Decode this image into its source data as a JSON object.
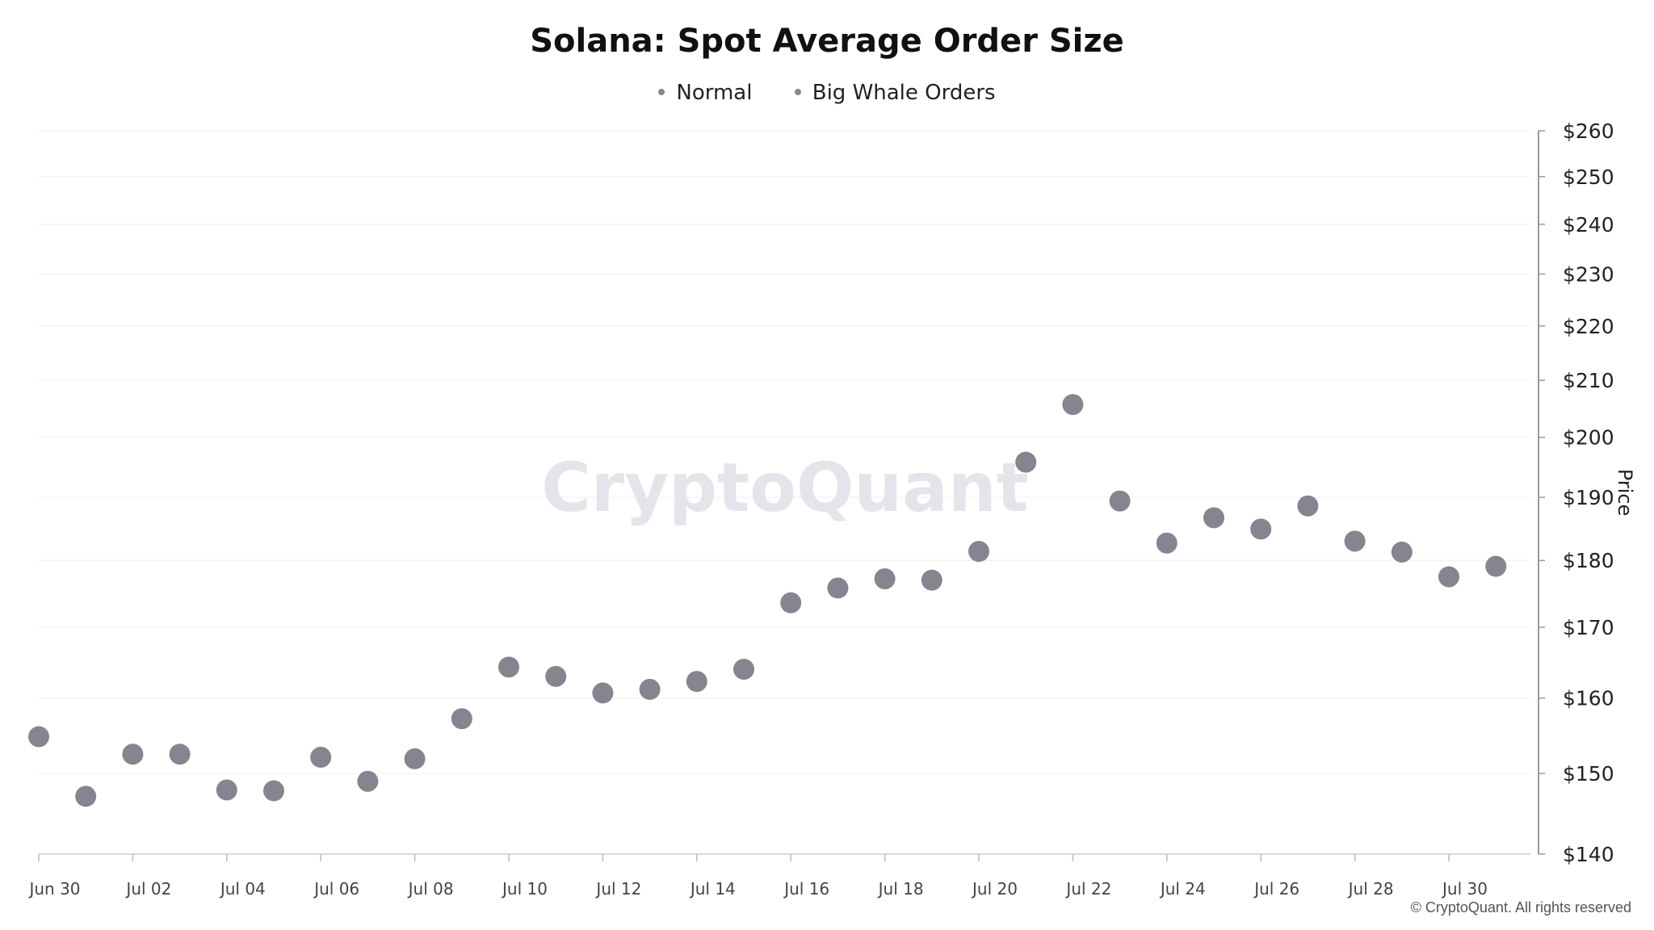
{
  "chart_data": {
    "type": "scatter",
    "title": "Solana: Spot Average Order Size",
    "legend": [
      "Normal",
      "Big Whale Orders"
    ],
    "legend_position": "top-center",
    "ylabel": "Price",
    "y_axis_side": "right",
    "y_scale": "log",
    "ylim": [
      140,
      260
    ],
    "yticks": [
      140,
      150,
      160,
      170,
      180,
      190,
      200,
      210,
      220,
      230,
      240,
      250,
      260
    ],
    "ytick_labels": [
      "$140",
      "$150",
      "$160",
      "$170",
      "$180",
      "$190",
      "$200",
      "$210",
      "$220",
      "$230",
      "$240",
      "$250",
      "$260"
    ],
    "xlim": [
      "2025-06-30",
      "2025-08-01"
    ],
    "xtick_labels": [
      "Jun 30",
      "Jul 02",
      "Jul 04",
      "Jul 06",
      "Jul 08",
      "Jul 10",
      "Jul 12",
      "Jul 14",
      "Jul 16",
      "Jul 18",
      "Jul 20",
      "Jul 22",
      "Jul 24",
      "Jul 26",
      "Jul 28",
      "Jul 30"
    ],
    "grid": true,
    "marker_color": "#86848e",
    "watermark": "CryptoQuant",
    "x": [
      "Jun 30",
      "Jul 01",
      "Jul 02",
      "Jul 03",
      "Jul 04",
      "Jul 05",
      "Jul 06",
      "Jul 07",
      "Jul 08",
      "Jul 09",
      "Jul 10",
      "Jul 11",
      "Jul 12",
      "Jul 13",
      "Jul 14",
      "Jul 15",
      "Jul 16",
      "Jul 17",
      "Jul 18",
      "Jul 19",
      "Jul 20",
      "Jul 21",
      "Jul 22",
      "Jul 23",
      "Jul 24",
      "Jul 25",
      "Jul 26",
      "Jul 27",
      "Jul 28",
      "Jul 29",
      "Jul 30",
      "Jul 31"
    ],
    "series": [
      {
        "name": "Big Whale Orders",
        "values": [
          154.8,
          147.1,
          152.5,
          152.5,
          147.9,
          147.8,
          152.1,
          149.0,
          151.9,
          157.2,
          164.3,
          163.0,
          160.7,
          161.2,
          162.3,
          164.0,
          173.6,
          175.8,
          177.2,
          177.0,
          181.4,
          195.8,
          205.7,
          189.4,
          182.7,
          186.7,
          184.9,
          188.6,
          183.0,
          181.3,
          177.5,
          179.1
        ]
      }
    ]
  },
  "footer": {
    "copyright": "© CryptoQuant. All rights reserved"
  }
}
